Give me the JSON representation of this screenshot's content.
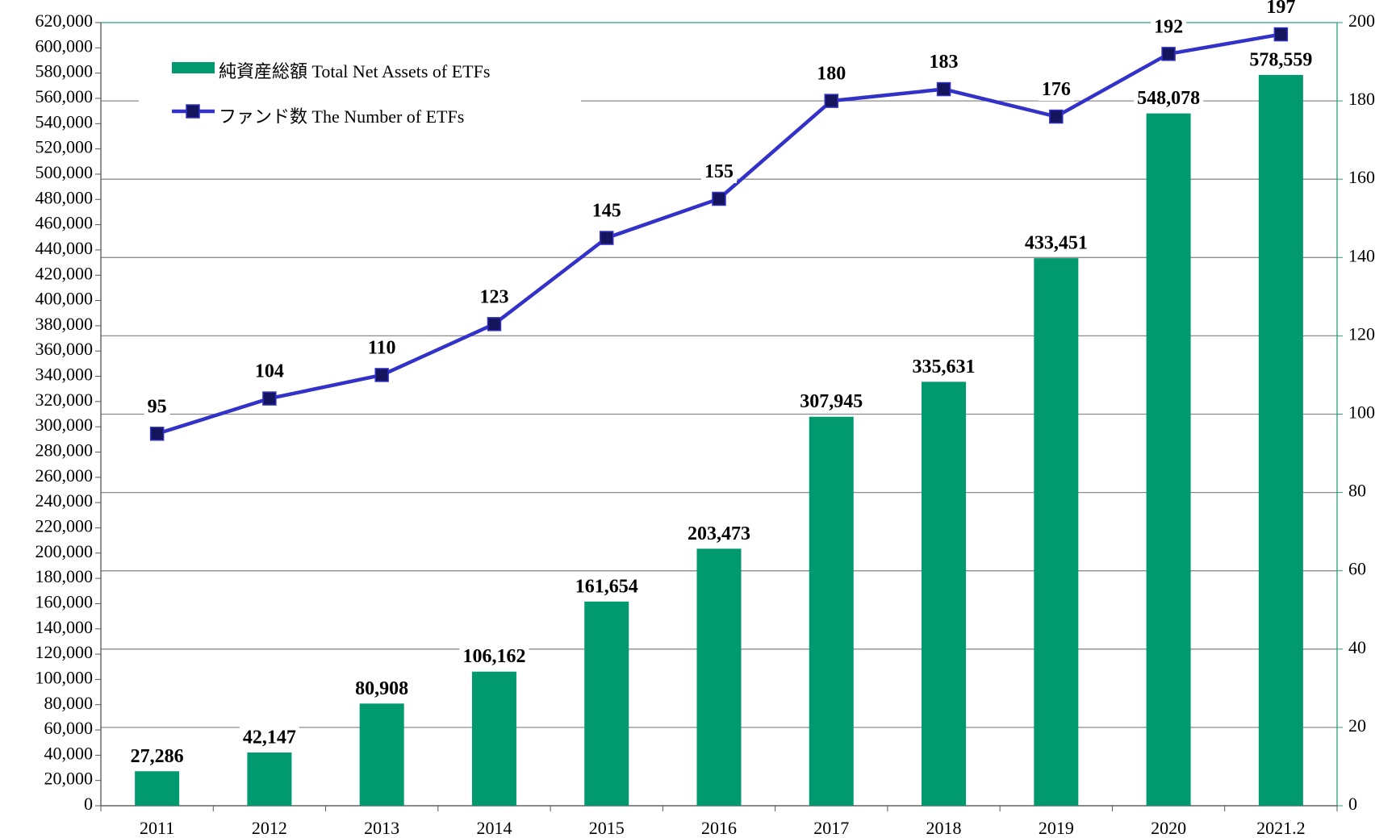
{
  "chart_data": {
    "type": "combo",
    "categories": [
      "2011",
      "2012",
      "2013",
      "2014",
      "2015",
      "2016",
      "2017",
      "2018",
      "2019",
      "2020",
      "2021.2"
    ],
    "series": [
      {
        "name": "純資産総額 Total Net Assets of ETFs",
        "type": "bar",
        "color": "#009a6e",
        "values": [
          27286,
          42147,
          80908,
          106162,
          161654,
          203473,
          307945,
          335631,
          433451,
          548078,
          578559
        ],
        "value_labels": [
          "27,286",
          "42,147",
          "80,908",
          "106,162",
          "161,654",
          "203,473",
          "307,945",
          "335,631",
          "433,451",
          "548,078",
          "578,559"
        ]
      },
      {
        "name": "ファンド数 The Number of ETFs",
        "type": "line",
        "axis": "y2",
        "color": "#3232c8",
        "marker_color": "#15155e",
        "values": [
          95,
          104,
          110,
          123,
          145,
          155,
          180,
          183,
          176,
          192,
          197
        ]
      }
    ],
    "ylim": [
      0,
      620000
    ],
    "yticks": [
      0,
      {
        "value": 20000,
        "label": "20,000"
      },
      {
        "value": 40000,
        "label": "40,000"
      },
      {
        "value": 60000,
        "label": "60,000"
      },
      {
        "value": 80000,
        "label": "80,000"
      },
      {
        "value": 100000,
        "label": "100,000"
      },
      {
        "value": 120000,
        "label": "120,000"
      },
      {
        "value": 140000,
        "label": "140,000"
      },
      {
        "value": 160000,
        "label": "160,000"
      },
      {
        "value": 180000,
        "label": "180,000"
      },
      {
        "value": 200000,
        "label": "200,000"
      },
      {
        "value": 220000,
        "label": "220,000"
      },
      {
        "value": 240000,
        "label": "240,000"
      },
      {
        "value": 260000,
        "label": "260,000"
      },
      {
        "value": 280000,
        "label": "280,000"
      },
      {
        "value": 300000,
        "label": "300,000"
      },
      {
        "value": 320000,
        "label": "320,000"
      },
      {
        "value": 340000,
        "label": "340,000"
      },
      {
        "value": 360000,
        "label": "360,000"
      },
      {
        "value": 380000,
        "label": "380,000"
      },
      {
        "value": 400000,
        "label": "400,000"
      },
      {
        "value": 420000,
        "label": "420,000"
      },
      {
        "value": 440000,
        "label": "440,000"
      },
      {
        "value": 460000,
        "label": "460,000"
      },
      {
        "value": 480000,
        "label": "480,000"
      },
      {
        "value": 500000,
        "label": "500,000"
      },
      {
        "value": 520000,
        "label": "520,000"
      },
      {
        "value": 540000,
        "label": "540,000"
      },
      {
        "value": 560000,
        "label": "560,000"
      },
      {
        "value": 580000,
        "label": "580,000"
      },
      {
        "value": 600000,
        "label": "600,000"
      },
      {
        "value": 620000,
        "label": "620,000"
      }
    ],
    "y2lim": [
      0,
      200
    ],
    "y2ticks": [
      0,
      20,
      40,
      60,
      80,
      100,
      120,
      140,
      160,
      180,
      200
    ],
    "grid": true,
    "grid_axis": "y2",
    "legend": "upper left"
  }
}
